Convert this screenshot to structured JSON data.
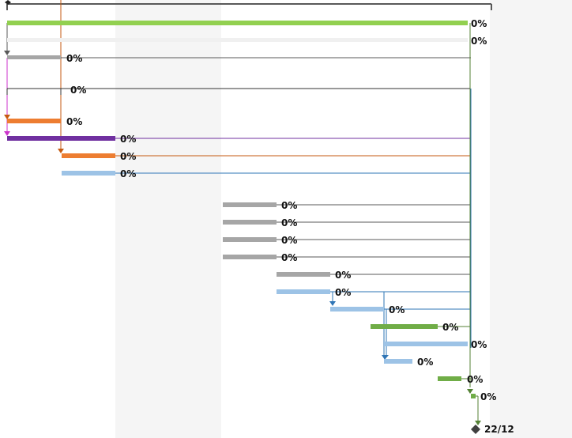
{
  "timeline": {
    "shaded_columns": [
      "weekend-band",
      "right-band"
    ]
  },
  "summary_labels": [
    {
      "id": "summary-1",
      "text": "0%"
    },
    {
      "id": "summary-2",
      "text": "0%"
    }
  ],
  "tasks": [
    {
      "row": 3,
      "progress": 0,
      "label": "0%",
      "color": "#a6a6a6"
    },
    {
      "row": 5,
      "progress": 0,
      "label": "0%",
      "color": "#555555"
    },
    {
      "row": 7,
      "progress": 0,
      "label": "0%",
      "color": "#ed7d31"
    },
    {
      "row": 8,
      "progress": 0,
      "label": "0%",
      "color": "#7030a0"
    },
    {
      "row": 9,
      "progress": 0,
      "label": "0%",
      "color": "#ed7d31"
    },
    {
      "row": 10,
      "progress": 0,
      "label": "0%",
      "color": "#9dc3e6"
    },
    {
      "row": 11,
      "progress": 0,
      "label": "0%",
      "color": "#a6a6a6"
    },
    {
      "row": 12,
      "progress": 0,
      "label": "0%",
      "color": "#a6a6a6"
    },
    {
      "row": 13,
      "progress": 0,
      "label": "0%",
      "color": "#a6a6a6"
    },
    {
      "row": 14,
      "progress": 0,
      "label": "0%",
      "color": "#a6a6a6"
    },
    {
      "row": 15,
      "progress": 0,
      "label": "0%",
      "color": "#a6a6a6"
    },
    {
      "row": 16,
      "progress": 0,
      "label": "0%",
      "color": "#9dc3e6"
    },
    {
      "row": 17,
      "progress": 0,
      "label": "0%",
      "color": "#9dc3e6"
    },
    {
      "row": 18,
      "progress": 0,
      "label": "0%",
      "color": "#70ad47"
    },
    {
      "row": 19,
      "progress": 0,
      "label": "0%",
      "color": "#9dc3e6"
    },
    {
      "row": 20,
      "progress": 0,
      "label": "0%",
      "color": "#9dc3e6"
    },
    {
      "row": 21,
      "progress": 0,
      "label": "0%",
      "color": "#70ad47"
    },
    {
      "row": 22,
      "progress": 0,
      "label": "0%",
      "color": "#70ad47"
    }
  ],
  "project_bar": {
    "label": "0%",
    "color": "#92d050",
    "progress": 0
  },
  "milestone": {
    "label": "22/12",
    "icon": "diamond-milestone-icon",
    "color": "#404040"
  },
  "colors": {
    "grid_band": "#f2f2f2",
    "dependency_gray": "#595959",
    "dependency_orange": "#c55a11",
    "dependency_blue": "#2e75b6",
    "dependency_green": "#548235",
    "dependency_purple": "#7030a0",
    "dependency_magenta": "#cc33cc"
  }
}
